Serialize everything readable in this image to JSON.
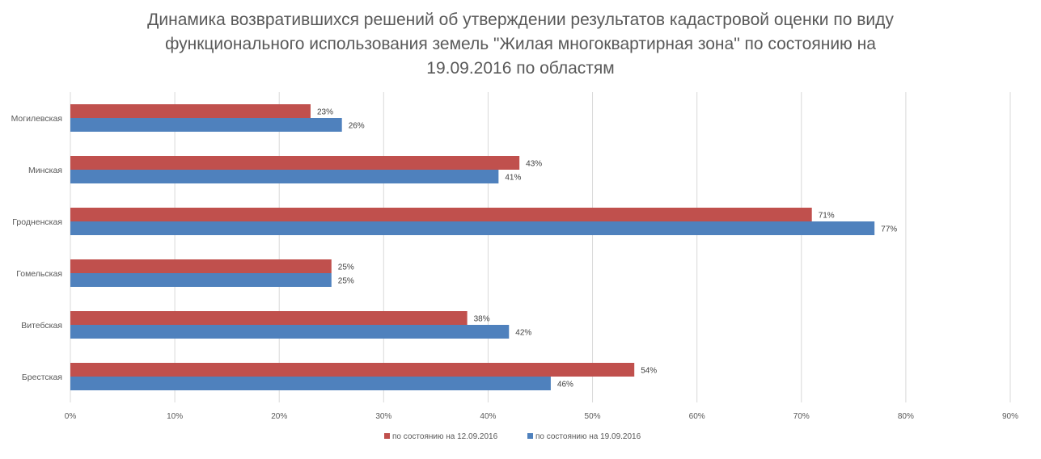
{
  "chart_data": {
    "type": "bar",
    "orientation": "horizontal",
    "title_lines": [
      "Динамика возвратившихся решений об утверждении результатов кадастровой оценки по виду",
      "функционального использования земель \"Жилая многоквартирная зона\" по состоянию на",
      "19.09.2016  по областям"
    ],
    "categories": [
      "Могилевская",
      "Минская",
      "Гродненская",
      "Гомельская",
      "Витебская",
      "Брестская"
    ],
    "series": [
      {
        "name": "по состоянию на 12.09.2016",
        "color": "#C0504D",
        "values": [
          23,
          43,
          71,
          25,
          38,
          54
        ],
        "labels": [
          "23%",
          "43%",
          "71%",
          "25%",
          "38%",
          "54%"
        ]
      },
      {
        "name": "по состоянию на 19.09.2016",
        "color": "#4F81BD",
        "values": [
          26,
          41,
          77,
          25,
          42,
          46
        ],
        "labels": [
          "26%",
          "41%",
          "77%",
          "25%",
          "42%",
          "46%"
        ]
      }
    ],
    "xlim": [
      0,
      90
    ],
    "xticks": [
      "0%",
      "10%",
      "20%",
      "30%",
      "40%",
      "50%",
      "60%",
      "70%",
      "80%",
      "90%"
    ],
    "xlabel": "",
    "ylabel": "",
    "grid": "vertical",
    "legend": "bottom"
  }
}
